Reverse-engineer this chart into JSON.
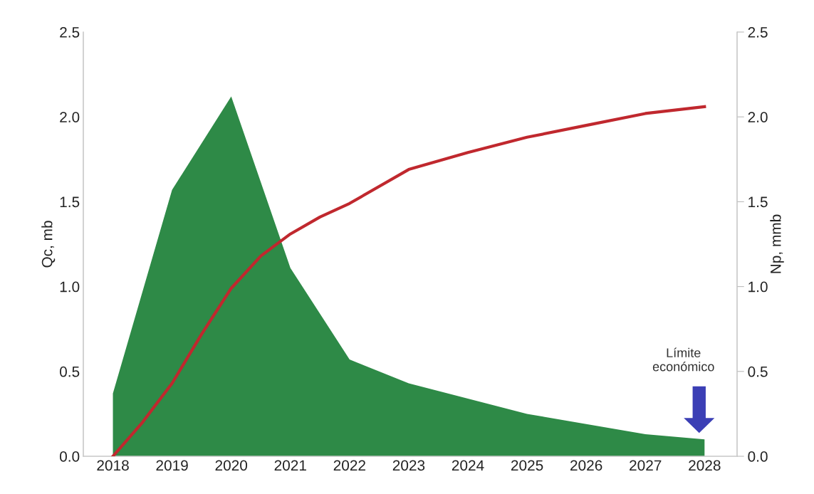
{
  "chart_data": {
    "type": "area",
    "ylabel": "Qc, mb",
    "y2label": "Np, mmb",
    "x": [
      2018,
      2019,
      2020,
      2021,
      2022,
      2023,
      2024,
      2025,
      2026,
      2027,
      2028
    ],
    "series": [
      {
        "color": "#2e8a47",
        "values": [
          0.37,
          1.57,
          2.12,
          1.11,
          0.57,
          0.43,
          0.34,
          0.25,
          0.19,
          0.13,
          0.1
        ]
      },
      {
        "type": "line",
        "axis": "y2",
        "color": "#c0282e",
        "x": [
          2018,
          2018.5,
          2019,
          2019.5,
          2020,
          2020.5,
          2021,
          2021.5,
          2022,
          2023,
          2024,
          2025,
          2026,
          2027,
          2028
        ],
        "values": [
          0.0,
          0.2,
          0.43,
          0.72,
          0.99,
          1.18,
          1.31,
          1.41,
          1.49,
          1.69,
          1.79,
          1.88,
          1.95,
          2.02,
          2.06
        ]
      }
    ],
    "xlim": [
      2017.5,
      2028.55
    ],
    "xticks": [
      2018,
      2019,
      2020,
      2021,
      2022,
      2023,
      2024,
      2025,
      2026,
      2027,
      2028
    ],
    "ylim": [
      0,
      2.5
    ],
    "yticks": [
      {
        "value": 0,
        "label": "0.0"
      },
      {
        "value": 0.5,
        "label": "0.5"
      },
      {
        "value": 1,
        "label": "1.0"
      },
      {
        "value": 1.5,
        "label": "1.5"
      },
      {
        "value": 2,
        "label": "2.0"
      },
      {
        "value": 2.5,
        "label": "2.5"
      }
    ],
    "y2lim": [
      0,
      2.5
    ],
    "y2ticks": [
      {
        "value": 0,
        "label": "0.0"
      },
      {
        "value": 0.5,
        "label": "0.5"
      },
      {
        "value": 1,
        "label": "1.0"
      },
      {
        "value": 1.5,
        "label": "1.5"
      },
      {
        "value": 2,
        "label": "2.0"
      },
      {
        "value": 2.5,
        "label": "2.5"
      }
    ],
    "annotations": [
      "Límite\neconómico"
    ],
    "grid": false,
    "legend": false,
    "marker": "none",
    "line_style": "solid"
  }
}
